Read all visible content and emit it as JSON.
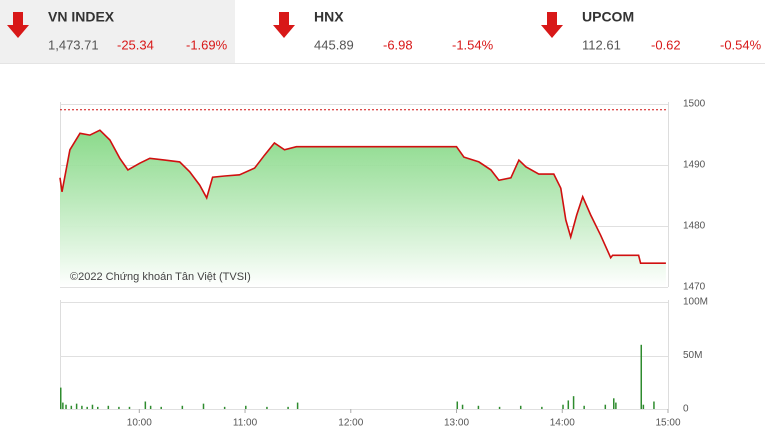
{
  "indices": [
    {
      "name": "VN INDEX",
      "value": "1,473.71",
      "change": "-25.34",
      "percent": "-1.69%"
    },
    {
      "name": "HNX",
      "value": "445.89",
      "change": "-6.98",
      "percent": "-1.54%"
    },
    {
      "name": "UPCOM",
      "value": "112.61",
      "change": "-0.62",
      "percent": "-0.54%"
    }
  ],
  "chart_data": [
    {
      "type": "line",
      "annotation": "©2022 Chứng khoán Tân Việt (TVSI)",
      "x": [
        9.25,
        9.269,
        9.344,
        9.439,
        9.533,
        9.627,
        9.722,
        9.816,
        9.892,
        10.005,
        10.099,
        10.241,
        10.382,
        10.476,
        10.571,
        10.637,
        10.693,
        10.807,
        10.948,
        11.09,
        11.184,
        11.278,
        11.373,
        11.486,
        13.0,
        13.07,
        13.212,
        13.325,
        13.401,
        13.514,
        13.59,
        13.656,
        13.778,
        13.92,
        13.986,
        14.033,
        14.08,
        14.137,
        14.193,
        14.269,
        14.363,
        14.458,
        14.476,
        14.722,
        14.741,
        14.98
      ],
      "series": [
        {
          "color": "#d01010",
          "values": [
            1487.9,
            1485.6,
            1492.5,
            1495.2,
            1494.9,
            1495.7,
            1494.1,
            1491.1,
            1489.2,
            1490.3,
            1491.1,
            1490.8,
            1490.5,
            1488.9,
            1486.7,
            1484.6,
            1488.0,
            1488.2,
            1488.4,
            1489.5,
            1491.6,
            1493.6,
            1492.5,
            1493.0,
            1493.0,
            1491.3,
            1490.5,
            1489.2,
            1487.5,
            1487.9,
            1490.8,
            1489.7,
            1488.5,
            1488.5,
            1486.2,
            1481.0,
            1478.2,
            1481.8,
            1484.8,
            1481.8,
            1478.5,
            1474.8,
            1475.2,
            1475.2,
            1473.9,
            1473.9
          ]
        }
      ],
      "reference_line": 1499.05,
      "xlim": [
        9.25,
        15
      ],
      "ylim": [
        1470,
        1500
      ],
      "yticks": [
        1500,
        1490,
        1480,
        1470
      ],
      "grid": true
    },
    {
      "type": "bar",
      "color": "#2e8b2e",
      "x": [
        9.25,
        9.27,
        9.3,
        9.35,
        9.4,
        9.45,
        9.5,
        9.55,
        9.6,
        9.7,
        9.8,
        9.9,
        10.05,
        10.1,
        10.2,
        10.4,
        10.6,
        10.8,
        11.0,
        11.2,
        11.4,
        11.49,
        13.0,
        13.05,
        13.2,
        13.4,
        13.6,
        13.8,
        14.0,
        14.05,
        14.1,
        14.2,
        14.4,
        14.48,
        14.5,
        14.74,
        14.76,
        14.86
      ],
      "values": [
        20,
        6,
        4,
        3,
        5,
        3,
        2,
        4,
        2,
        3,
        2,
        2,
        7,
        3,
        2,
        3,
        5,
        2,
        3,
        2,
        2,
        6,
        7,
        4,
        3,
        2,
        3,
        2,
        4,
        8,
        12,
        3,
        4,
        10,
        6,
        60,
        4,
        7
      ],
      "xlim": [
        9.25,
        15
      ],
      "xticks": [
        {
          "value": 10,
          "label": "10:00"
        },
        {
          "value": 11,
          "label": "11:00"
        },
        {
          "value": 12,
          "label": "12:00"
        },
        {
          "value": 13,
          "label": "13:00"
        },
        {
          "value": 14,
          "label": "14:00"
        },
        {
          "value": 15,
          "label": "15:00"
        }
      ],
      "ylim": [
        0,
        100
      ],
      "yticks": [
        {
          "value": 100,
          "label": "100M"
        },
        {
          "value": 50,
          "label": "50M"
        },
        0
      ],
      "grid": true
    }
  ]
}
